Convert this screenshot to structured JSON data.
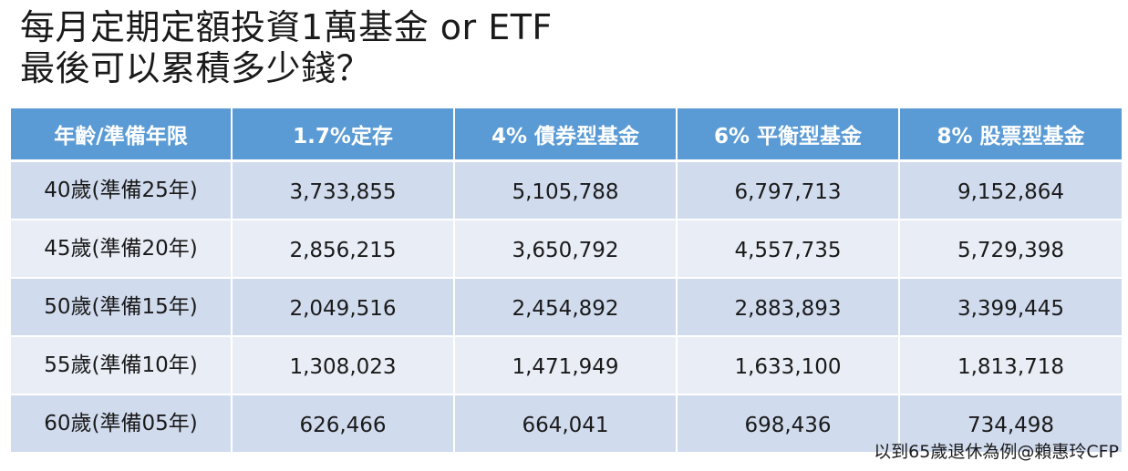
{
  "title": {
    "line1": "每月定期定額投資1萬基金 or ETF",
    "line2": "最後可以累積多少錢？"
  },
  "table": {
    "headers": [
      "年齡/準備年限",
      "1.7%定存",
      "4% 債券型基金",
      "6%  平衡型基金",
      "8% 股票型基金"
    ],
    "rows": [
      {
        "label": "40歲(準備25年)",
        "values": [
          "3,733,855",
          "5,105,788",
          "6,797,713",
          "9,152,864"
        ]
      },
      {
        "label": "45歲(準備20年)",
        "values": [
          "2,856,215",
          "3,650,792",
          "4,557,735",
          "5,729,398"
        ]
      },
      {
        "label": "50歲(準備15年)",
        "values": [
          "2,049,516",
          "2,454,892",
          "2,883,893",
          "3,399,445"
        ]
      },
      {
        "label": "55歲(準備10年)",
        "values": [
          "1,308,023",
          "1,471,949",
          "1,633,100",
          "1,813,718"
        ]
      },
      {
        "label": "60歲(準備05年)",
        "values": [
          "626,466",
          "664,041",
          "698,436",
          "734,498"
        ]
      }
    ]
  },
  "footer": {
    "note": "以到65歲退休為例@賴惠玲CFP"
  },
  "colors": {
    "header_bg": "#5b9bd5",
    "row_odd_bg": "#d1dbee",
    "row_even_bg": "#e9edf6"
  }
}
